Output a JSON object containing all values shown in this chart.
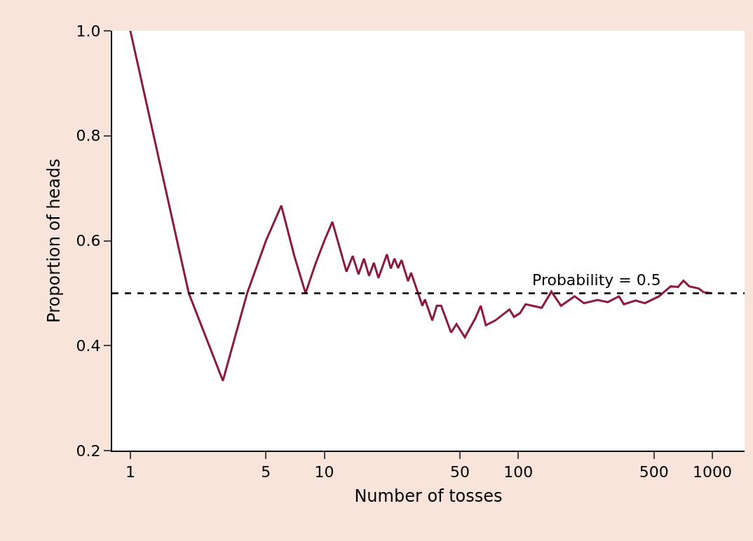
{
  "chart_data": {
    "type": "line",
    "xlabel": "Number of tosses",
    "ylabel": "Proportion of heads",
    "log": "x",
    "xlim": [
      0.806,
      1466
    ],
    "ylim": [
      0.2,
      1.0
    ],
    "xticks": [
      1,
      5,
      10,
      50,
      100,
      500,
      1000
    ],
    "yticks": [
      0.2,
      0.4,
      0.6,
      0.8,
      {
        "value": 1,
        "label": "1.0"
      }
    ],
    "grid": false,
    "marker": "none",
    "line_style": "solid",
    "ref_lines": [
      {
        "axis": "y",
        "value": 0.5,
        "label": "Probability = 0.5",
        "color": "#000000",
        "line_style": "dashed"
      }
    ],
    "series": [
      {
        "color": "#8b1a3d",
        "x": [
          1,
          2,
          3,
          4,
          5,
          6,
          7,
          8,
          9,
          10,
          11,
          13,
          14,
          15,
          16,
          17,
          18,
          19,
          21,
          22,
          23,
          24,
          25,
          27,
          28,
          32,
          33,
          36,
          38,
          40,
          45,
          48,
          53,
          56,
          60,
          64,
          68,
          76,
          83,
          90,
          95,
          102,
          109,
          132,
          148,
          166,
          195,
          218,
          256,
          289,
          330,
          350,
          402,
          449,
          530,
          610,
          665,
          710,
          760,
          850,
          900,
          1000
        ],
        "values": [
          1,
          0.5,
          0.333,
          0.5,
          0.6,
          0.667,
          0.571,
          0.5,
          0.556,
          0.6,
          0.636,
          0.541,
          0.571,
          0.536,
          0.566,
          0.533,
          0.558,
          0.529,
          0.574,
          0.547,
          0.566,
          0.548,
          0.563,
          0.523,
          0.539,
          0.476,
          0.488,
          0.448,
          0.476,
          0.476,
          0.425,
          0.441,
          0.416,
          0.432,
          0.452,
          0.476,
          0.439,
          0.448,
          0.459,
          0.469,
          0.455,
          0.462,
          0.479,
          0.472,
          0.503,
          0.476,
          0.494,
          0.481,
          0.487,
          0.483,
          0.494,
          0.479,
          0.486,
          0.481,
          0.494,
          0.513,
          0.512,
          0.524,
          0.513,
          0.509,
          0.502,
          0.5
        ]
      }
    ]
  }
}
